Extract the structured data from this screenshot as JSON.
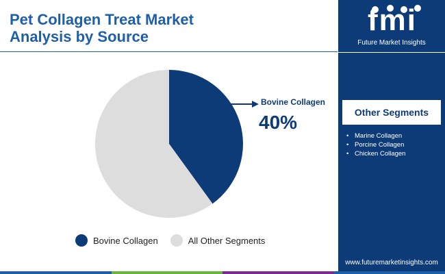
{
  "header": {
    "title_line1": "Pet Collagen Treat Market",
    "title_line2": "Analysis by Source"
  },
  "chart_data": {
    "type": "pie",
    "categories": [
      "Bovine Collagen",
      "All Other Segments"
    ],
    "values": [
      40,
      60
    ],
    "unit": "%",
    "colors": [
      "#0d3b78",
      "#dddddd"
    ],
    "legend_position": "bottom",
    "callout": {
      "label": "Bovine Collagen",
      "value": "40%"
    }
  },
  "legend": {
    "items": [
      {
        "label": "Bovine Collagen",
        "color": "#0d3b78"
      },
      {
        "label": "All Other Segments",
        "color": "#dddddd"
      }
    ]
  },
  "brand": {
    "logo_text": "fmi",
    "name": "Future Market Insights",
    "website": "www.futuremarketinsights.com",
    "panel_color": "#0d3b78"
  },
  "other_segments": {
    "heading": "Other Segments",
    "items": [
      "Marine Collagen",
      "Porcine Collagen",
      "Chicken Collagen"
    ]
  },
  "footer_bar_colors": [
    "#1f5fa8",
    "#6db33f",
    "#7b2c8f",
    "#1f5fa8"
  ]
}
